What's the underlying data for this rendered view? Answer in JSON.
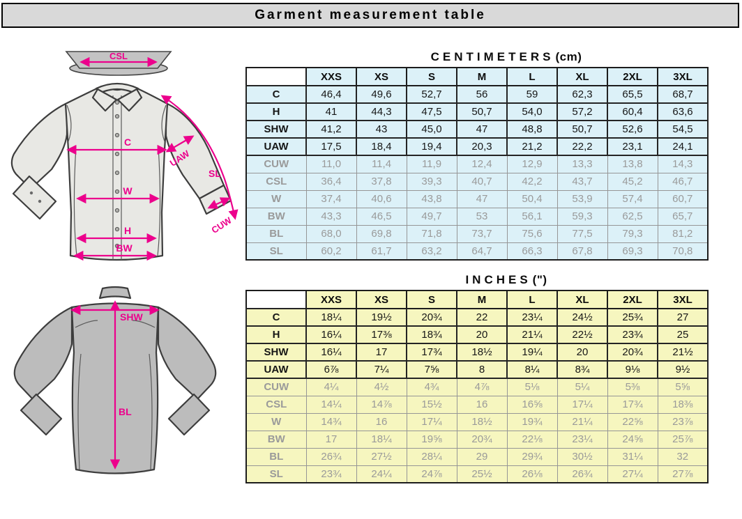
{
  "title": "Garment measurement table",
  "colors": {
    "accent": "#ec008c",
    "cm_cell_bg": "#dcf1f8",
    "inch_cell_bg": "#f6f6bf",
    "title_bar_bg": "#d9d9d9",
    "dim_text": "#9a9a9a"
  },
  "sizes": [
    "XXS",
    "XS",
    "S",
    "M",
    "L",
    "XL",
    "2XL",
    "3XL"
  ],
  "cm_table": {
    "title": "CENTIMETERS",
    "unit_suffix": "(cm)",
    "rows": [
      {
        "label": "C",
        "emphasis": true,
        "values": [
          "46,4",
          "49,6",
          "52,7",
          "56",
          "59",
          "62,3",
          "65,5",
          "68,7"
        ]
      },
      {
        "label": "H",
        "emphasis": true,
        "values": [
          "41",
          "44,3",
          "47,5",
          "50,7",
          "54,0",
          "57,2",
          "60,4",
          "63,6"
        ]
      },
      {
        "label": "SHW",
        "emphasis": true,
        "values": [
          "41,2",
          "43",
          "45,0",
          "47",
          "48,8",
          "50,7",
          "52,6",
          "54,5"
        ]
      },
      {
        "label": "UAW",
        "emphasis": true,
        "values": [
          "17,5",
          "18,4",
          "19,4",
          "20,3",
          "21,2",
          "22,2",
          "23,1",
          "24,1"
        ]
      },
      {
        "label": "CUW",
        "emphasis": false,
        "values": [
          "11,0",
          "11,4",
          "11,9",
          "12,4",
          "12,9",
          "13,3",
          "13,8",
          "14,3"
        ]
      },
      {
        "label": "CSL",
        "emphasis": false,
        "values": [
          "36,4",
          "37,8",
          "39,3",
          "40,7",
          "42,2",
          "43,7",
          "45,2",
          "46,7"
        ]
      },
      {
        "label": "W",
        "emphasis": false,
        "values": [
          "37,4",
          "40,6",
          "43,8",
          "47",
          "50,4",
          "53,9",
          "57,4",
          "60,7"
        ]
      },
      {
        "label": "BW",
        "emphasis": false,
        "values": [
          "43,3",
          "46,5",
          "49,7",
          "53",
          "56,1",
          "59,3",
          "62,5",
          "65,7"
        ]
      },
      {
        "label": "BL",
        "emphasis": false,
        "values": [
          "68,0",
          "69,8",
          "71,8",
          "73,7",
          "75,6",
          "77,5",
          "79,3",
          "81,2"
        ]
      },
      {
        "label": "SL",
        "emphasis": false,
        "values": [
          "60,2",
          "61,7",
          "63,2",
          "64,7",
          "66,3",
          "67,8",
          "69,3",
          "70,8"
        ]
      }
    ]
  },
  "inches_table": {
    "title": "INCHES",
    "unit_suffix": "(\")",
    "rows": [
      {
        "label": "C",
        "emphasis": true,
        "values": [
          "18¼",
          "19½",
          "20¾",
          "22",
          "23¼",
          "24½",
          "25¾",
          "27"
        ]
      },
      {
        "label": "H",
        "emphasis": true,
        "values": [
          "16¼",
          "17⅜",
          "18¾",
          "20",
          "21¼",
          "22½",
          "23¾",
          "25"
        ]
      },
      {
        "label": "SHW",
        "emphasis": true,
        "values": [
          "16¼",
          "17",
          "17¾",
          "18½",
          "19¼",
          "20",
          "20¾",
          "21½"
        ]
      },
      {
        "label": "UAW",
        "emphasis": true,
        "values": [
          "6⅞",
          "7¼",
          "7⅝",
          "8",
          "8¼",
          "8¾",
          "9⅛",
          "9½"
        ]
      },
      {
        "label": "CUW",
        "emphasis": false,
        "values": [
          "4¼",
          "4½",
          "4¾",
          "4⅞",
          "5⅛",
          "5¼",
          "5⅜",
          "5⅝"
        ]
      },
      {
        "label": "CSL",
        "emphasis": false,
        "values": [
          "14¼",
          "14⅞",
          "15½",
          "16",
          "16⅝",
          "17¼",
          "17¾",
          "18⅜"
        ]
      },
      {
        "label": "W",
        "emphasis": false,
        "values": [
          "14¾",
          "16",
          "17¼",
          "18½",
          "19¾",
          "21¼",
          "22⅝",
          "23⅞"
        ]
      },
      {
        "label": "BW",
        "emphasis": false,
        "values": [
          "17",
          "18¼",
          "19⅝",
          "20¾",
          "22⅛",
          "23¼",
          "24⅝",
          "25⅞"
        ]
      },
      {
        "label": "BL",
        "emphasis": false,
        "values": [
          "26¾",
          "27½",
          "28¼",
          "29",
          "29¾",
          "30½",
          "31¼",
          "32"
        ]
      },
      {
        "label": "SL",
        "emphasis": false,
        "values": [
          "23¾",
          "24¼",
          "24⅞",
          "25½",
          "26⅛",
          "26¾",
          "27¼",
          "27⅞"
        ]
      }
    ]
  },
  "diagrams": {
    "front": {
      "labels": {
        "csl": "CSL",
        "c": "C",
        "uaw": "UAW",
        "sl": "SL",
        "w": "W",
        "h": "H",
        "bw": "BW",
        "cuw": "CUW"
      }
    },
    "back": {
      "labels": {
        "shw": "SHW",
        "bl": "BL"
      }
    }
  }
}
